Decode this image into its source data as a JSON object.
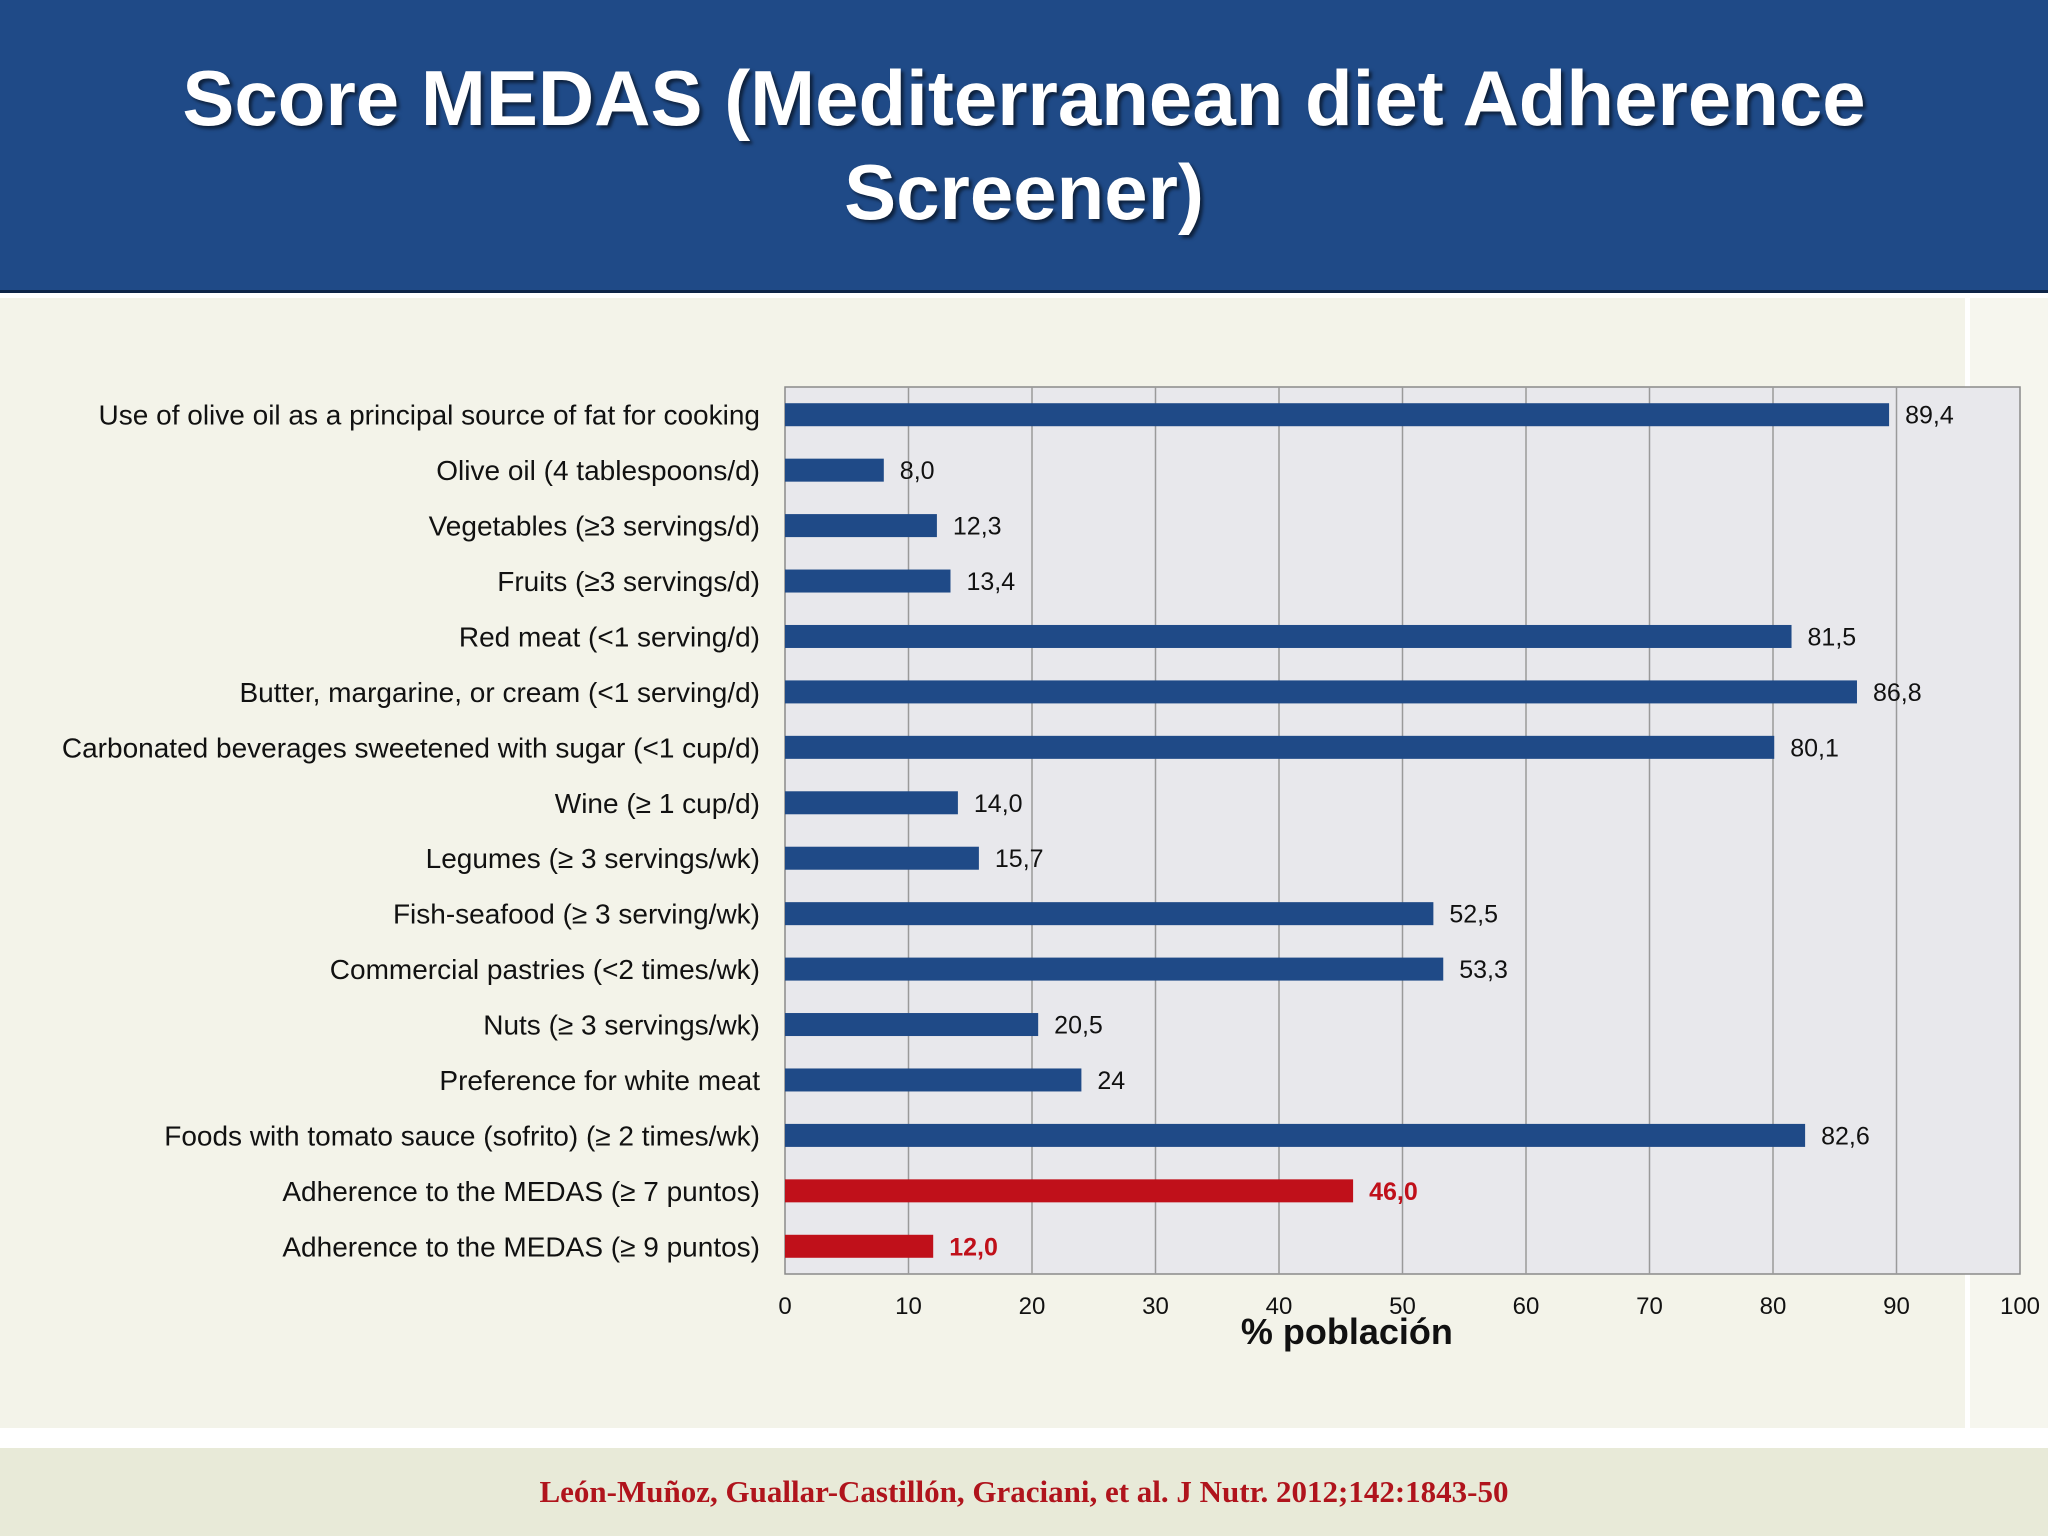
{
  "header": {
    "title": "Score MEDAS (Mediterranean diet Adherence Screener)"
  },
  "footer": {
    "citation": "León-Muñoz, Guallar-Castillón, Graciani, et al. J Nutr. 2012;142:1843-50"
  },
  "colors": {
    "header_bg": "#1f4a87",
    "bar": "#1f4a87",
    "highlight_bar": "#c0101a",
    "citation": "#b0141c"
  },
  "chart_data": {
    "type": "bar",
    "orientation": "horizontal",
    "xlabel": "% población",
    "xlim": [
      0,
      100
    ],
    "xticks": [
      0,
      10,
      20,
      30,
      40,
      50,
      60,
      70,
      80,
      90,
      100
    ],
    "grid": true,
    "categories": [
      "Use of olive oil as a principal source of fat for cooking",
      "Olive oil (4 tablespoons/d)",
      "Vegetables (≥3 servings/d)",
      "Fruits (≥3 servings/d)",
      "Red meat (<1 serving/d)",
      "Butter, margarine, or cream (<1 serving/d)",
      "Carbonated beverages sweetened with sugar (<1 cup/d)",
      "Wine (≥ 1 cup/d)",
      "Legumes (≥ 3 servings/wk)",
      "Fish-seafood (≥ 3 serving/wk)",
      "Commercial pastries (<2 times/wk)",
      "Nuts (≥ 3 servings/wk)",
      "Preference for white meat",
      "Foods with tomato sauce (sofrito) (≥ 2 times/wk)",
      "Adherence  to the MEDAS (≥ 7 puntos)",
      "Adherence  to the MEDAS (≥ 9 puntos)"
    ],
    "values": [
      89.4,
      8.0,
      12.3,
      13.4,
      81.5,
      86.8,
      80.1,
      14.0,
      15.7,
      52.5,
      53.3,
      20.5,
      24,
      82.6,
      46.0,
      12.0
    ],
    "value_labels": [
      "89,4",
      "8,0",
      "12,3",
      "13,4",
      "81,5",
      "86,8",
      "80,1",
      "14,0",
      "15,7",
      "52,5",
      "53,3",
      "20,5",
      "24",
      "82,6",
      "46,0",
      "12,0"
    ],
    "highlighted": [
      false,
      false,
      false,
      false,
      false,
      false,
      false,
      false,
      false,
      false,
      false,
      false,
      false,
      false,
      true,
      true
    ]
  }
}
